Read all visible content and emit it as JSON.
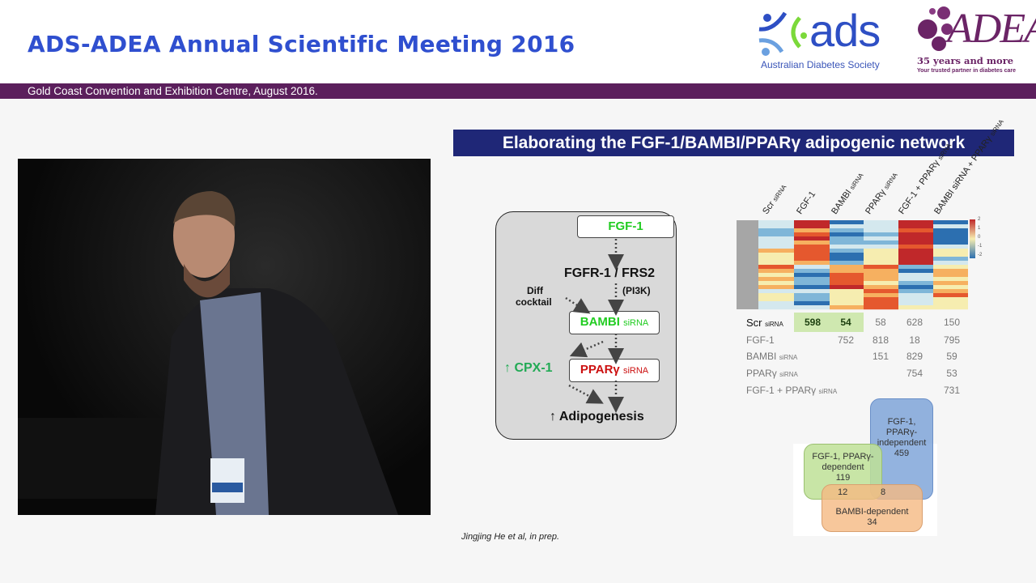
{
  "header": {
    "title": "ADS-ADEA Annual Scientific Meeting 2016",
    "subtitle": "Gold Coast Convention and Exhibition Centre, August 2016.",
    "ads_logo": {
      "word": "ads",
      "tagline": "Australian Diabetes Society"
    },
    "adea_logo": {
      "word": "ADEA",
      "line1": "35 years and more",
      "line2": "Your trusted partner in diabetes care"
    }
  },
  "colors": {
    "conf_title": "#2f4fcf",
    "purple_bar": "#5b1f5c",
    "slide_title_bg": "#1f2777",
    "green": "#22cc22",
    "red": "#cc1111"
  },
  "slide": {
    "title": "Elaborating the FGF-1/BAMBI/PPARγ adipogenic network",
    "diagram": {
      "fgf1": "FGF-1",
      "fgfr": "FGFR-1 / FRS2",
      "pi3k": "(PI3K)",
      "diff": "Diff",
      "cocktail": "cocktail",
      "bambi": "BAMBI",
      "bambi_sirna": "siRNA",
      "cpx": "↑ CPX-1",
      "ppar": "PPARγ",
      "ppar_sirna": "siRNA",
      "adipo": "↑ Adipogenesis"
    },
    "heatmap": {
      "columns": [
        {
          "main": "Scr",
          "sub": "siRNA"
        },
        {
          "main": "FGF-1",
          "sub": ""
        },
        {
          "main": "BAMBI",
          "sub": "siRNA"
        },
        {
          "main": "PPARγ",
          "sub": "siRNA"
        },
        {
          "main": "FGF-1 + PPARγ",
          "sub": "siRNA"
        },
        {
          "main": "BAMBI siRNA + PPARγ",
          "sub": "siRNA"
        }
      ],
      "scale": [
        "2",
        "1",
        "0",
        "-1",
        "-2"
      ]
    },
    "table": {
      "rows": [
        {
          "label": "Scr",
          "sub": "siRNA",
          "cells": [
            "598",
            "54",
            "58",
            "628",
            "150"
          ]
        },
        {
          "label": "FGF-1",
          "sub": "",
          "cells": [
            "",
            "752",
            "818",
            "18",
            "795"
          ]
        },
        {
          "label": "BAMBI",
          "sub": "siRNA",
          "cells": [
            "",
            "",
            "151",
            "829",
            "59"
          ]
        },
        {
          "label": "PPARγ",
          "sub": "siRNA",
          "cells": [
            "",
            "",
            "",
            "754",
            "53"
          ]
        },
        {
          "label": "FGF-1 + PPARγ",
          "sub": "siRNA",
          "cells": [
            "",
            "",
            "",
            "",
            "731"
          ]
        }
      ]
    },
    "venn": {
      "blue": "FGF-1, PPARγ- independent",
      "blue_n": "459",
      "green": "FGF-1, PPARγ- dependent",
      "green_n": "119",
      "orange": "BAMBI-dependent",
      "orange_n": "34",
      "green_orange": "12",
      "blue_orange": "8"
    },
    "citation": "Jingjing He et al, in prep."
  }
}
